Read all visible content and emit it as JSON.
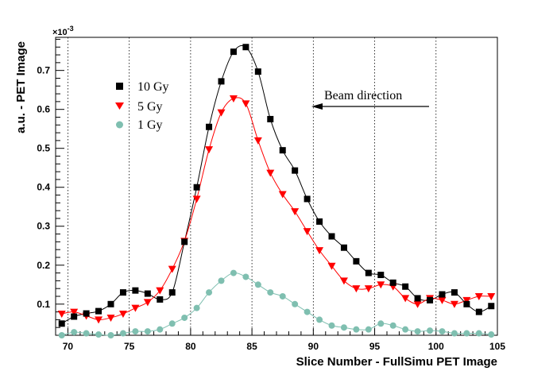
{
  "chart_data": {
    "type": "scatter",
    "xlabel": "Slice Number - FullSimu PET Image",
    "ylabel": "a.u. - PET Image",
    "y_multiplier": "×10",
    "y_multiplier_exp": "-3",
    "xlim": [
      69,
      105
    ],
    "ylim": [
      0.02,
      0.785
    ],
    "x_ticks": [
      70,
      75,
      80,
      85,
      90,
      95,
      100,
      105
    ],
    "y_ticks": [
      0.1,
      0.2,
      0.3,
      0.4,
      0.5,
      0.6,
      0.7
    ],
    "grid_x": "dotted vertical at major x ticks",
    "legend_position": "top-left",
    "annotation": "Beam direction",
    "series": [
      {
        "name": "10 Gy",
        "color": "#000000",
        "marker": "square",
        "x": [
          69.5,
          70.5,
          71.5,
          72.5,
          73.5,
          74.5,
          75.5,
          76.5,
          77.5,
          78.5,
          79.5,
          80.5,
          81.5,
          82.5,
          83.5,
          84.5,
          85.5,
          86.5,
          87.5,
          88.5,
          89.5,
          90.5,
          91.5,
          92.5,
          93.5,
          94.5,
          95.5,
          96.5,
          97.5,
          98.5,
          99.5,
          100.5,
          101.5,
          102.5,
          103.5,
          104.5
        ],
        "values": [
          0.05,
          0.068,
          0.076,
          0.082,
          0.1,
          0.13,
          0.135,
          0.127,
          0.112,
          0.13,
          0.26,
          0.4,
          0.555,
          0.672,
          0.748,
          0.76,
          0.697,
          0.575,
          0.495,
          0.443,
          0.37,
          0.312,
          0.274,
          0.245,
          0.21,
          0.18,
          0.175,
          0.155,
          0.145,
          0.115,
          0.11,
          0.125,
          0.13,
          0.1,
          0.08,
          0.095
        ]
      },
      {
        "name": "5 Gy",
        "color": "#ff0000",
        "marker": "triangle-down",
        "x": [
          69.5,
          70.5,
          71.5,
          72.5,
          73.5,
          74.5,
          75.5,
          76.5,
          77.5,
          78.5,
          79.5,
          80.5,
          81.5,
          82.5,
          83.5,
          84.5,
          85.5,
          86.5,
          87.5,
          88.5,
          89.5,
          90.5,
          91.5,
          92.5,
          93.5,
          94.5,
          95.5,
          96.5,
          97.5,
          98.5,
          99.5,
          100.5,
          101.5,
          102.5,
          103.5,
          104.5
        ],
        "values": [
          0.075,
          0.08,
          0.07,
          0.06,
          0.065,
          0.075,
          0.09,
          0.105,
          0.135,
          0.19,
          0.262,
          0.37,
          0.497,
          0.592,
          0.628,
          0.615,
          0.52,
          0.437,
          0.382,
          0.338,
          0.287,
          0.238,
          0.198,
          0.16,
          0.14,
          0.14,
          0.15,
          0.145,
          0.115,
          0.1,
          0.115,
          0.11,
          0.1,
          0.11,
          0.12,
          0.12
        ]
      },
      {
        "name": "1 Gy",
        "color": "#7fbfb0",
        "marker": "circle",
        "x": [
          69.5,
          70.5,
          71.5,
          72.5,
          73.5,
          74.5,
          75.5,
          76.5,
          77.5,
          78.5,
          79.5,
          80.5,
          81.5,
          82.5,
          83.5,
          84.5,
          85.5,
          86.5,
          87.5,
          88.5,
          89.5,
          90.5,
          91.5,
          92.5,
          93.5,
          94.5,
          95.5,
          96.5,
          97.5,
          98.5,
          99.5,
          100.5,
          101.5,
          102.5,
          103.5,
          104.5
        ],
        "values": [
          0.02,
          0.028,
          0.025,
          0.022,
          0.02,
          0.025,
          0.03,
          0.03,
          0.035,
          0.05,
          0.065,
          0.09,
          0.13,
          0.16,
          0.18,
          0.17,
          0.15,
          0.13,
          0.12,
          0.1,
          0.08,
          0.06,
          0.045,
          0.04,
          0.035,
          0.035,
          0.05,
          0.045,
          0.035,
          0.03,
          0.032,
          0.03,
          0.025,
          0.025,
          0.025,
          0.022
        ]
      }
    ]
  }
}
